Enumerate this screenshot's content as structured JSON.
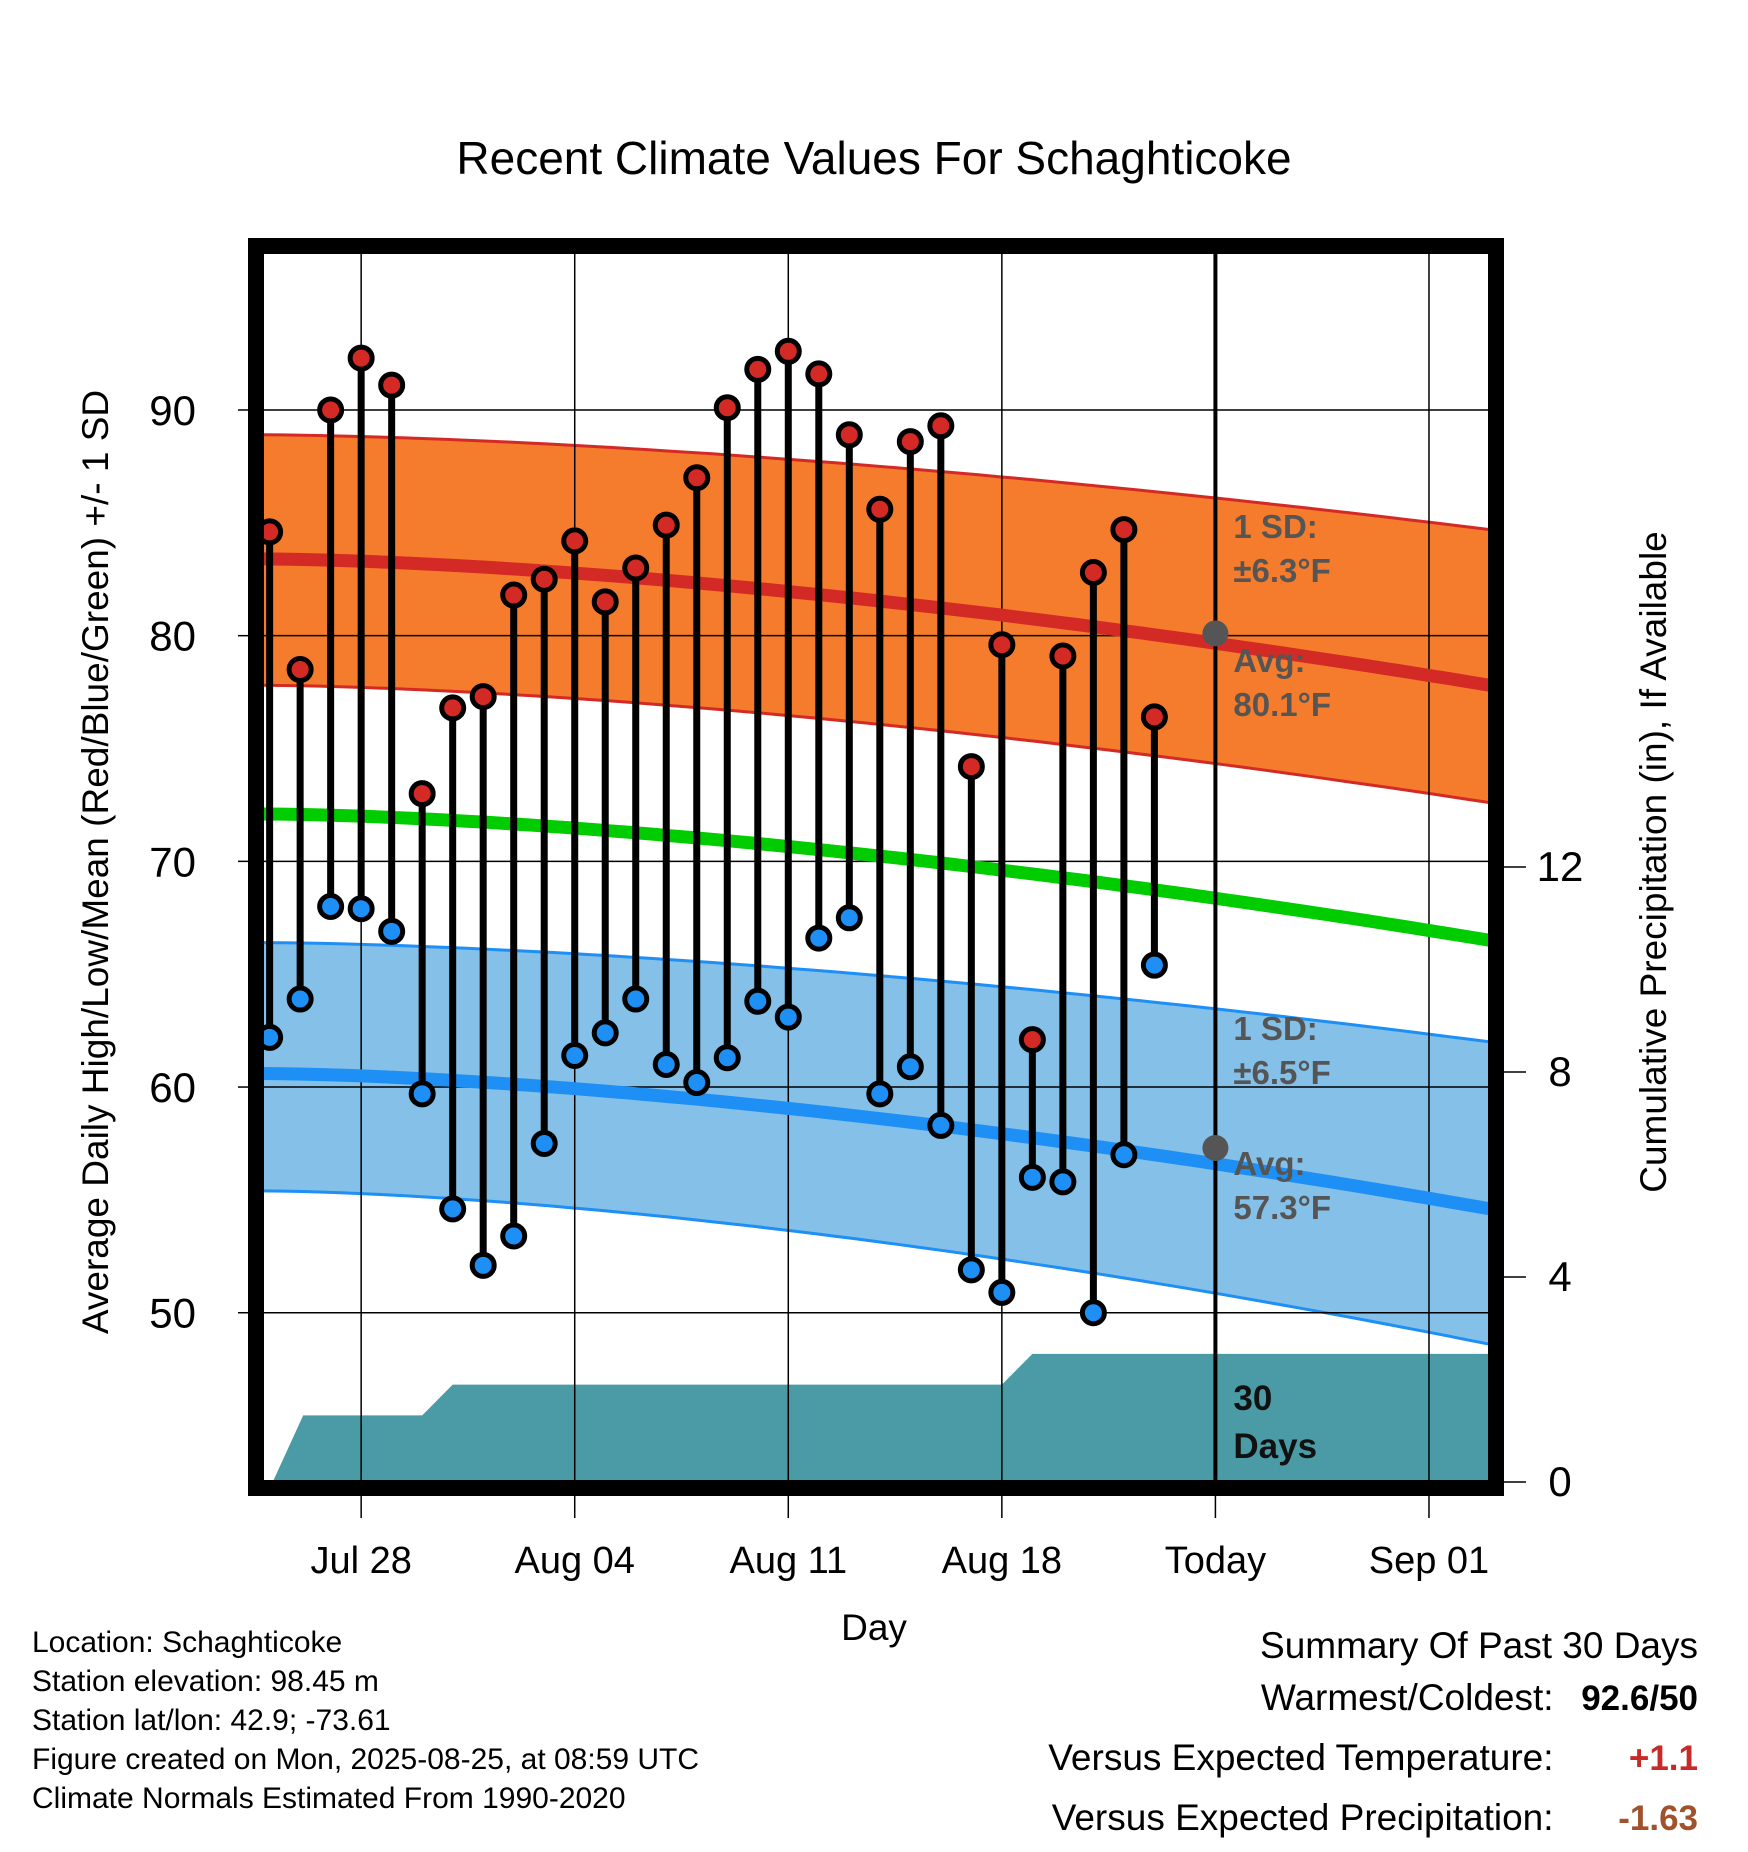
{
  "chart_data": {
    "type": "line",
    "title": "Recent Climate Values For Schaghticoke",
    "xlabel": "Day",
    "ylabel": "Average Daily High/Low/Mean (Red/Blue/Green) +/- 1 SD",
    "y2label": "Cumulative Precipitation (in), If Available",
    "x_tick_labels": [
      "Jul 28",
      "Aug 04",
      "Aug 11",
      "Aug 18",
      "Today",
      "Sep 01"
    ],
    "x_tick_days": [
      0,
      7,
      14,
      21,
      28,
      35
    ],
    "x_range": [
      -3.25,
      37.0
    ],
    "y_ticks": [
      50,
      60,
      70,
      80,
      90
    ],
    "ylim": [
      42.5,
      97.0
    ],
    "y2_ticks": [
      0,
      4,
      8,
      12
    ],
    "y2lim": [
      0,
      24
    ],
    "days": [
      "Jul 25",
      "Jul 26",
      "Jul 27",
      "Jul 28",
      "Jul 29",
      "Jul 30",
      "Jul 31",
      "Aug 01",
      "Aug 02",
      "Aug 03",
      "Aug 04",
      "Aug 05",
      "Aug 06",
      "Aug 07",
      "Aug 08",
      "Aug 09",
      "Aug 10",
      "Aug 11",
      "Aug 12",
      "Aug 13",
      "Aug 14",
      "Aug 15",
      "Aug 16",
      "Aug 17",
      "Aug 18",
      "Aug 19",
      "Aug 20",
      "Aug 21",
      "Aug 22",
      "Aug 23",
      "Aug 24"
    ],
    "daily_high": [
      84.6,
      78.5,
      90.0,
      92.3,
      91.1,
      73.0,
      76.8,
      77.3,
      81.8,
      82.5,
      84.2,
      81.5,
      83.0,
      84.9,
      87.0,
      90.1,
      91.8,
      92.6,
      91.6,
      88.9,
      85.6,
      88.6,
      89.3,
      74.2,
      79.6,
      62.1,
      79.1,
      82.8,
      84.7,
      76.4,
      null
    ],
    "daily_low": [
      62.2,
      63.9,
      68.0,
      67.9,
      66.9,
      59.7,
      54.6,
      52.1,
      53.4,
      57.5,
      61.4,
      62.4,
      63.9,
      61.0,
      60.2,
      61.3,
      63.8,
      63.1,
      66.6,
      67.5,
      59.7,
      60.9,
      58.3,
      51.9,
      50.9,
      56.0,
      55.8,
      50.0,
      57.0,
      65.4,
      null
    ],
    "normal_high": {
      "name": "Avg:",
      "start": 83.4,
      "today": 80.1,
      "end": 77.8
    },
    "normal_high_sd": {
      "name": "1 SD:",
      "value": "±6.3°F",
      "upper_start": 88.9,
      "upper_end": 84.7,
      "lower_start": 77.8,
      "lower_end": 72.6
    },
    "normal_mean": {
      "start": 72.1,
      "end": 66.5
    },
    "normal_low": {
      "name": "Avg:",
      "start": 60.6,
      "today": 57.3,
      "end": 54.6
    },
    "normal_low_sd": {
      "name": "1 SD:",
      "value": "±6.5°F",
      "upper_start": 66.4,
      "upper_end": 62.0,
      "lower_start": 55.4,
      "lower_end": 48.6
    },
    "precip_cumulative": {
      "days": [
        -2.9,
        -1.9,
        0.0,
        2.0,
        3.0,
        4.0,
        21.0,
        22.0,
        28.0,
        37.0
      ],
      "values": [
        0,
        1.3,
        1.3,
        1.3,
        1.9,
        1.9,
        1.9,
        2.5,
        2.5,
        2.5
      ]
    },
    "today_label": "Avg:",
    "window_label": [
      "30",
      "Days"
    ],
    "high_label_lines": [
      "1 SD:",
      "±6.3°F",
      "Avg:",
      "80.1°F"
    ],
    "low_label_lines": [
      "1 SD:",
      "±6.5°F",
      "Avg:",
      "57.3°F"
    ],
    "colors": {
      "high_band": "#f47c2c",
      "high_line": "#d42a25",
      "mean_line": "#00cc00",
      "low_band": "#84c0e7",
      "low_line": "#1e8ff5",
      "precip": "#4a9ba5",
      "high_marker": "#d42a25",
      "low_marker": "#1e8ff5",
      "label_gray": "#555555"
    }
  },
  "footer": {
    "location": "Location: Schaghticoke",
    "elevation": "Station elevation: 98.45 m",
    "latlon": "Station lat/lon: 42.9; -73.61",
    "created": "Figure created on Mon, 2025-08-25, at 08:59 UTC",
    "normals": "Climate Normals Estimated From 1990-2020"
  },
  "summary": {
    "heading": "Summary Of Past 30 Days",
    "warmest_coldest_label": "Warmest/Coldest:",
    "warmest_coldest_value": "92.6/50",
    "temp_label": "Versus Expected Temperature:",
    "temp_value": "+1.1",
    "temp_color": "#c82a2a",
    "precip_label": "Versus Expected Precipitation:",
    "precip_value": "-1.63",
    "precip_color": "#a0522d"
  }
}
